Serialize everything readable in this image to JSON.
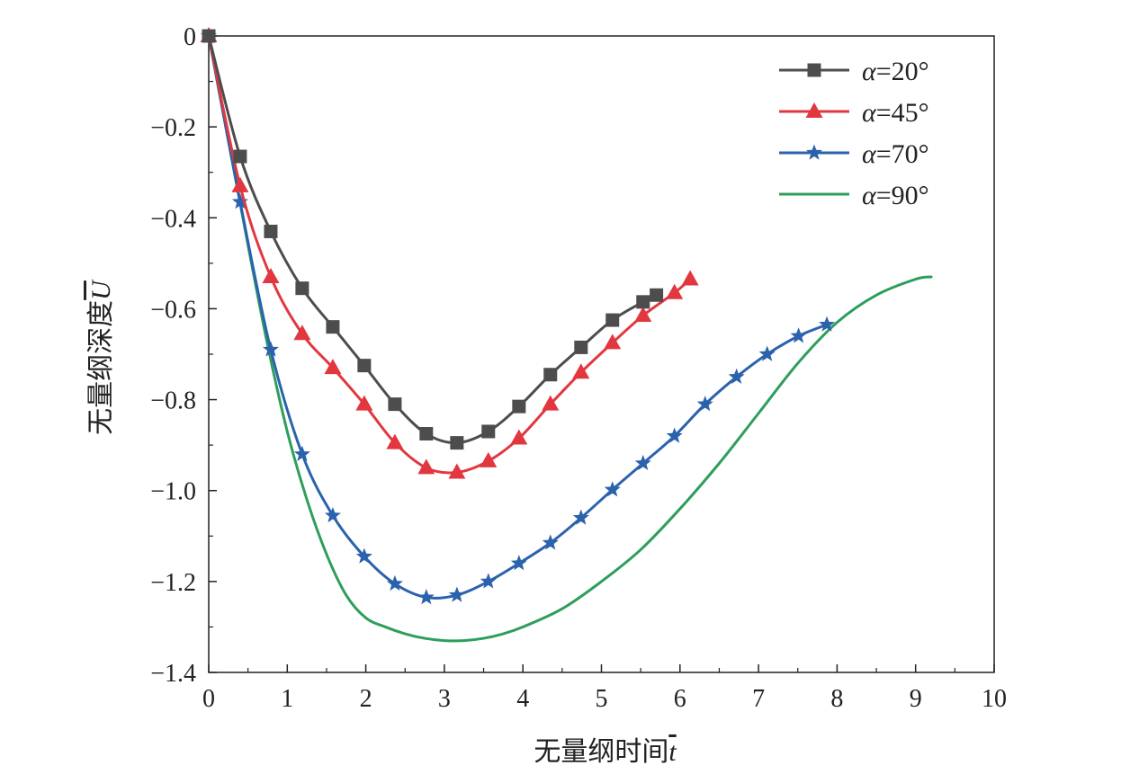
{
  "chart_data": {
    "type": "line",
    "title": "",
    "xlabel": "无量纲时间",
    "xlabel_symbol": "t",
    "ylabel": "无量纲深度",
    "ylabel_symbol": "U",
    "xlim": [
      0,
      10
    ],
    "ylim": [
      -1.4,
      0
    ],
    "xticks": [
      0,
      1,
      2,
      3,
      4,
      5,
      6,
      7,
      8,
      9,
      10
    ],
    "yticks": [
      0,
      -0.2,
      -0.4,
      -0.6,
      -0.8,
      -1.0,
      -1.2,
      -1.4
    ],
    "xtick_labels": [
      "0",
      "1",
      "2",
      "3",
      "4",
      "5",
      "6",
      "7",
      "8",
      "9",
      "10"
    ],
    "ytick_labels": [
      "0",
      "−0.2",
      "−0.4",
      "−0.6",
      "−0.8",
      "−1.0",
      "−1.2",
      "−1.4"
    ],
    "grid": false,
    "legend_position": "top-right",
    "series": [
      {
        "name": "α=20°",
        "label_prefix": "α",
        "label_suffix": "=20°",
        "color": "#4d4d4d",
        "marker": "square",
        "x": [
          0,
          0.4,
          0.79,
          1.19,
          1.58,
          1.98,
          2.37,
          2.77,
          3.16,
          3.56,
          3.95,
          4.35,
          4.74,
          5.14,
          5.53,
          5.7
        ],
        "y": [
          0,
          -0.265,
          -0.43,
          -0.555,
          -0.64,
          -0.725,
          -0.81,
          -0.875,
          -0.895,
          -0.87,
          -0.815,
          -0.745,
          -0.685,
          -0.625,
          -0.585,
          -0.57
        ]
      },
      {
        "name": "α=45°",
        "label_prefix": "α",
        "label_suffix": "=45°",
        "color": "#e2373f",
        "marker": "triangle",
        "x": [
          0,
          0.4,
          0.79,
          1.19,
          1.58,
          1.98,
          2.37,
          2.77,
          3.16,
          3.56,
          3.95,
          4.35,
          4.74,
          5.14,
          5.53,
          5.93,
          6.13
        ],
        "y": [
          0,
          -0.33,
          -0.53,
          -0.655,
          -0.73,
          -0.81,
          -0.895,
          -0.95,
          -0.96,
          -0.935,
          -0.885,
          -0.81,
          -0.74,
          -0.675,
          -0.615,
          -0.565,
          -0.535
        ]
      },
      {
        "name": "α=70°",
        "label_prefix": "α",
        "label_suffix": "=70°",
        "color": "#2b62ad",
        "marker": "star",
        "x": [
          0,
          0.4,
          0.79,
          1.19,
          1.58,
          1.98,
          2.37,
          2.77,
          3.16,
          3.56,
          3.95,
          4.35,
          4.74,
          5.14,
          5.53,
          5.93,
          6.32,
          6.72,
          7.11,
          7.51,
          7.87
        ],
        "y": [
          0,
          -0.365,
          -0.69,
          -0.92,
          -1.055,
          -1.145,
          -1.205,
          -1.235,
          -1.23,
          -1.2,
          -1.16,
          -1.115,
          -1.06,
          -0.998,
          -0.94,
          -0.88,
          -0.81,
          -0.75,
          -0.7,
          -0.66,
          -0.635
        ]
      },
      {
        "name": "α=90°",
        "label_prefix": "α",
        "label_suffix": "=90°",
        "color": "#2e9e5b",
        "marker": "none",
        "x": [
          0,
          0.25,
          0.5,
          0.75,
          1.0,
          1.25,
          1.5,
          1.75,
          2.0,
          2.25,
          2.5,
          2.75,
          3.0,
          3.25,
          3.5,
          3.75,
          4.0,
          4.5,
          5.0,
          5.5,
          6.0,
          6.5,
          7.0,
          7.5,
          8.0,
          8.5,
          9.0,
          9.2
        ],
        "y": [
          0,
          -0.23,
          -0.46,
          -0.68,
          -0.87,
          -1.02,
          -1.14,
          -1.23,
          -1.28,
          -1.3,
          -1.315,
          -1.325,
          -1.33,
          -1.33,
          -1.325,
          -1.315,
          -1.3,
          -1.26,
          -1.2,
          -1.13,
          -1.04,
          -0.94,
          -0.83,
          -0.72,
          -0.63,
          -0.57,
          -0.535,
          -0.53
        ]
      }
    ]
  }
}
